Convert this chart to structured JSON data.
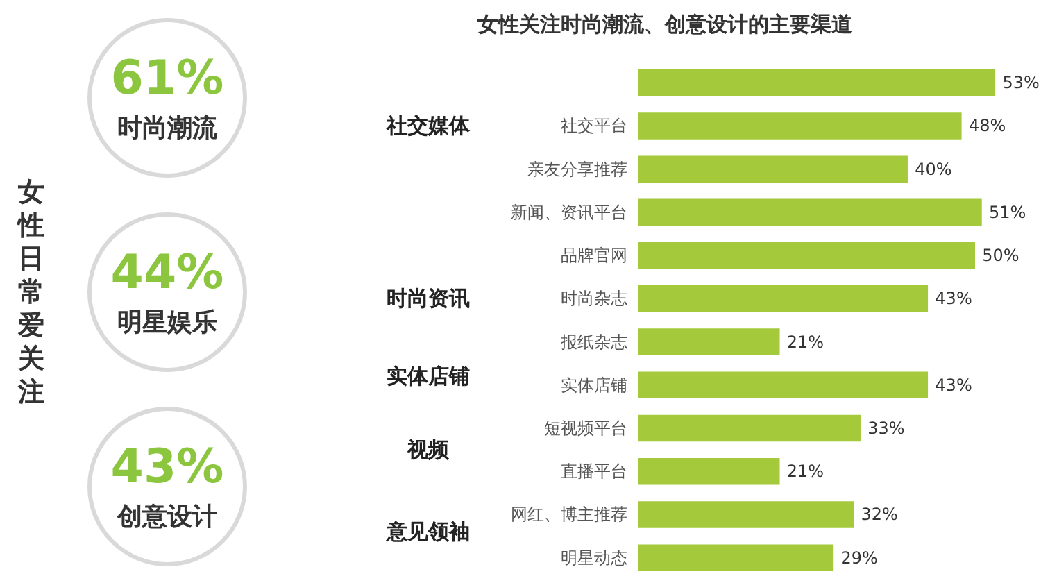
{
  "chart_data": [
    {
      "type": "other",
      "ylabel": "女性日常爱关注",
      "categories": [
        "时尚潮流",
        "明星娱乐",
        "创意设计"
      ],
      "values": [
        61,
        44,
        43
      ],
      "value_labels": [
        "61%",
        "44%",
        "43%"
      ]
    },
    {
      "type": "bar",
      "orientation": "horizontal",
      "title": "女性关注时尚潮流、创意设计的主要渠道",
      "categories": [
        null,
        "社交平台",
        "亲友分享推荐",
        "新闻、资讯平台",
        "品牌官网",
        "时尚杂志",
        "报纸杂志",
        "实体店铺",
        "短视频平台",
        "直播平台",
        "网红、博主推荐",
        "明星动态"
      ],
      "values": [
        53,
        48,
        40,
        51,
        50,
        43,
        21,
        43,
        33,
        21,
        32,
        29
      ],
      "value_labels": [
        "53%",
        "48%",
        "40%",
        "51%",
        "50%",
        "43%",
        "21%",
        "43%",
        "33%",
        "21%",
        "32%",
        "29%"
      ],
      "color": "#a4c93b",
      "tick_labels": "y",
      "grid": false,
      "annotations": [
        "社交媒体",
        "时尚资讯",
        "实体店铺",
        "视频",
        "意见领袖"
      ]
    }
  ]
}
